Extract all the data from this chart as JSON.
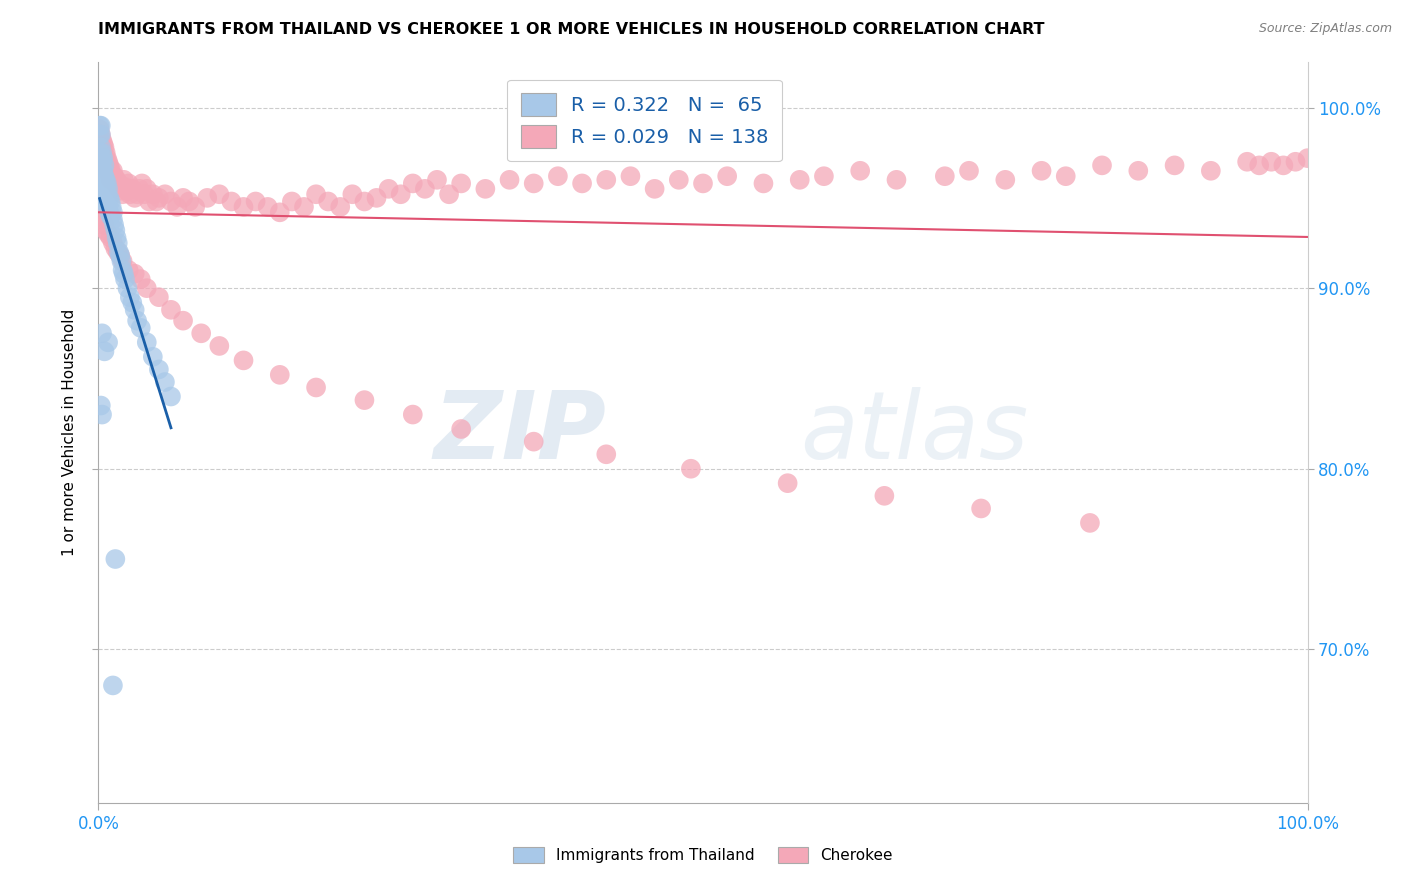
{
  "title": "IMMIGRANTS FROM THAILAND VS CHEROKEE 1 OR MORE VEHICLES IN HOUSEHOLD CORRELATION CHART",
  "source": "Source: ZipAtlas.com",
  "ylabel": "1 or more Vehicles in Household",
  "legend_label_blue": "Immigrants from Thailand",
  "legend_label_pink": "Cherokee",
  "R_blue": 0.322,
  "N_blue": 65,
  "R_pink": 0.029,
  "N_pink": 138,
  "blue_color": "#a8c8e8",
  "pink_color": "#f4a8b8",
  "blue_line_color": "#1a5fa8",
  "pink_line_color": "#e05070",
  "watermark_zip": "ZIP",
  "watermark_atlas": "atlas",
  "ytick_vals": [
    0.7,
    0.8,
    0.9,
    1.0
  ],
  "ytick_labels": [
    "70.0%",
    "80.0%",
    "90.0%",
    "100.0%"
  ],
  "ymin": 0.615,
  "ymax": 1.025,
  "xmin": 0.0,
  "xmax": 1.0,
  "blue_x": [
    0.001,
    0.001,
    0.001,
    0.001,
    0.002,
    0.002,
    0.002,
    0.002,
    0.002,
    0.002,
    0.003,
    0.003,
    0.003,
    0.003,
    0.004,
    0.004,
    0.004,
    0.004,
    0.005,
    0.005,
    0.005,
    0.005,
    0.006,
    0.006,
    0.006,
    0.007,
    0.007,
    0.007,
    0.008,
    0.008,
    0.009,
    0.009,
    0.01,
    0.01,
    0.011,
    0.012,
    0.012,
    0.013,
    0.014,
    0.015,
    0.016,
    0.017,
    0.018,
    0.019,
    0.02,
    0.021,
    0.022,
    0.024,
    0.026,
    0.028,
    0.03,
    0.032,
    0.035,
    0.04,
    0.045,
    0.05,
    0.055,
    0.06,
    0.003,
    0.008,
    0.005,
    0.002,
    0.003,
    0.014,
    0.012
  ],
  "blue_y": [
    0.99,
    0.985,
    0.975,
    0.97,
    0.99,
    0.985,
    0.978,
    0.972,
    0.968,
    0.962,
    0.975,
    0.97,
    0.965,
    0.958,
    0.972,
    0.965,
    0.958,
    0.952,
    0.968,
    0.962,
    0.955,
    0.948,
    0.96,
    0.955,
    0.948,
    0.958,
    0.952,
    0.945,
    0.955,
    0.948,
    0.95,
    0.942,
    0.948,
    0.94,
    0.945,
    0.942,
    0.938,
    0.935,
    0.932,
    0.928,
    0.925,
    0.92,
    0.918,
    0.915,
    0.91,
    0.908,
    0.905,
    0.9,
    0.895,
    0.892,
    0.888,
    0.882,
    0.878,
    0.87,
    0.862,
    0.855,
    0.848,
    0.84,
    0.875,
    0.87,
    0.865,
    0.835,
    0.83,
    0.75,
    0.68
  ],
  "pink_x": [
    0.001,
    0.002,
    0.003,
    0.003,
    0.004,
    0.004,
    0.005,
    0.005,
    0.005,
    0.006,
    0.006,
    0.007,
    0.007,
    0.008,
    0.008,
    0.009,
    0.009,
    0.01,
    0.01,
    0.011,
    0.012,
    0.012,
    0.013,
    0.014,
    0.015,
    0.016,
    0.017,
    0.018,
    0.019,
    0.02,
    0.021,
    0.022,
    0.024,
    0.025,
    0.026,
    0.028,
    0.03,
    0.032,
    0.034,
    0.036,
    0.038,
    0.04,
    0.042,
    0.045,
    0.048,
    0.05,
    0.055,
    0.06,
    0.065,
    0.07,
    0.075,
    0.08,
    0.09,
    0.1,
    0.11,
    0.12,
    0.13,
    0.14,
    0.15,
    0.16,
    0.17,
    0.18,
    0.19,
    0.2,
    0.21,
    0.22,
    0.23,
    0.24,
    0.25,
    0.26,
    0.27,
    0.28,
    0.29,
    0.3,
    0.32,
    0.34,
    0.36,
    0.38,
    0.4,
    0.42,
    0.44,
    0.46,
    0.48,
    0.5,
    0.52,
    0.55,
    0.58,
    0.6,
    0.63,
    0.66,
    0.7,
    0.72,
    0.75,
    0.78,
    0.8,
    0.83,
    0.86,
    0.89,
    0.92,
    0.95,
    0.96,
    0.97,
    0.98,
    0.99,
    1.0,
    0.002,
    0.003,
    0.005,
    0.006,
    0.008,
    0.01,
    0.012,
    0.014,
    0.016,
    0.018,
    0.02,
    0.025,
    0.03,
    0.035,
    0.04,
    0.05,
    0.06,
    0.07,
    0.085,
    0.1,
    0.12,
    0.15,
    0.18,
    0.22,
    0.26,
    0.3,
    0.36,
    0.42,
    0.49,
    0.57,
    0.65,
    0.73,
    0.82
  ],
  "pink_y": [
    0.988,
    0.985,
    0.982,
    0.978,
    0.98,
    0.975,
    0.978,
    0.972,
    0.968,
    0.975,
    0.97,
    0.972,
    0.968,
    0.97,
    0.965,
    0.968,
    0.963,
    0.966,
    0.96,
    0.963,
    0.96,
    0.965,
    0.962,
    0.958,
    0.96,
    0.956,
    0.958,
    0.954,
    0.956,
    0.952,
    0.96,
    0.956,
    0.954,
    0.958,
    0.952,
    0.955,
    0.95,
    0.952,
    0.955,
    0.958,
    0.952,
    0.955,
    0.948,
    0.952,
    0.948,
    0.95,
    0.952,
    0.948,
    0.945,
    0.95,
    0.948,
    0.945,
    0.95,
    0.952,
    0.948,
    0.945,
    0.948,
    0.945,
    0.942,
    0.948,
    0.945,
    0.952,
    0.948,
    0.945,
    0.952,
    0.948,
    0.95,
    0.955,
    0.952,
    0.958,
    0.955,
    0.96,
    0.952,
    0.958,
    0.955,
    0.96,
    0.958,
    0.962,
    0.958,
    0.96,
    0.962,
    0.955,
    0.96,
    0.958,
    0.962,
    0.958,
    0.96,
    0.962,
    0.965,
    0.96,
    0.962,
    0.965,
    0.96,
    0.965,
    0.962,
    0.968,
    0.965,
    0.968,
    0.965,
    0.97,
    0.968,
    0.97,
    0.968,
    0.97,
    0.972,
    0.94,
    0.938,
    0.935,
    0.932,
    0.93,
    0.928,
    0.925,
    0.922,
    0.92,
    0.918,
    0.915,
    0.91,
    0.908,
    0.905,
    0.9,
    0.895,
    0.888,
    0.882,
    0.875,
    0.868,
    0.86,
    0.852,
    0.845,
    0.838,
    0.83,
    0.822,
    0.815,
    0.808,
    0.8,
    0.792,
    0.785,
    0.778,
    0.77
  ]
}
